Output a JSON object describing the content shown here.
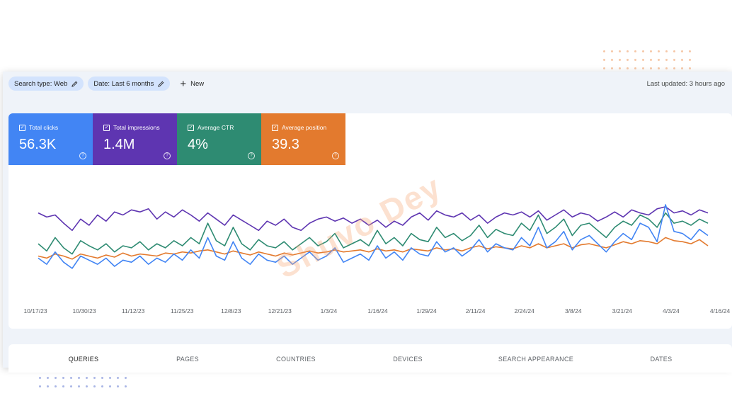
{
  "toolbar": {
    "search_type": "Search type: Web",
    "date": "Date: Last 6 months",
    "new_label": "New",
    "last_updated": "Last updated: 3 hours ago"
  },
  "metrics": [
    {
      "label": "Total clicks",
      "value": "56.3K",
      "color": "#4285f4"
    },
    {
      "label": "Total impressions",
      "value": "1.4M",
      "color": "#5e35b1"
    },
    {
      "label": "Average CTR",
      "value": "4%",
      "color": "#2e8b72"
    },
    {
      "label": "Average position",
      "value": "39.3",
      "color": "#e37a2e"
    }
  ],
  "watermark": "Shuvo Dey",
  "tabs": [
    "QUERIES",
    "PAGES",
    "COUNTRIES",
    "DEVICES",
    "SEARCH APPEARANCE",
    "DATES"
  ],
  "chart_data": {
    "type": "line",
    "x_ticks": [
      "10/17/23",
      "10/30/23",
      "11/12/23",
      "11/25/23",
      "12/8/23",
      "12/21/23",
      "1/3/24",
      "1/16/24",
      "1/29/24",
      "2/11/24",
      "2/24/24",
      "3/8/24",
      "3/21/24",
      "4/3/24",
      "4/16/24"
    ],
    "axis_hidden": true,
    "ylim": [
      0,
      100
    ],
    "series": [
      {
        "color": "#5e35b1",
        "values": [
          72,
          68,
          70,
          62,
          55,
          66,
          60,
          70,
          64,
          73,
          70,
          75,
          73,
          76,
          66,
          73,
          68,
          75,
          70,
          64,
          72,
          66,
          60,
          70,
          65,
          60,
          55,
          64,
          60,
          66,
          58,
          55,
          62,
          66,
          68,
          64,
          67,
          62,
          66,
          60,
          65,
          58,
          64,
          60,
          68,
          72,
          65,
          74,
          70,
          68,
          72,
          65,
          70,
          62,
          68,
          72,
          70,
          73,
          68,
          74,
          65,
          70,
          75,
          68,
          72,
          70,
          64,
          68,
          73,
          68,
          75,
          72,
          70,
          76,
          78,
          72,
          74,
          70,
          75,
          72
        ]
      },
      {
        "color": "#2e8b72",
        "values": [
          42,
          35,
          48,
          38,
          32,
          45,
          40,
          36,
          42,
          34,
          40,
          38,
          44,
          36,
          42,
          38,
          45,
          40,
          48,
          42,
          62,
          45,
          40,
          58,
          42,
          36,
          46,
          40,
          38,
          44,
          36,
          42,
          48,
          40,
          44,
          52,
          38,
          42,
          46,
          40,
          55,
          42,
          48,
          40,
          52,
          46,
          44,
          58,
          48,
          52,
          45,
          50,
          60,
          48,
          56,
          52,
          50,
          62,
          55,
          70,
          52,
          58,
          66,
          50,
          60,
          62,
          55,
          48,
          58,
          64,
          60,
          70,
          66,
          58,
          72,
          62,
          64,
          60,
          66,
          62
        ]
      },
      {
        "color": "#e37a2e",
        "values": [
          30,
          28,
          32,
          30,
          27,
          32,
          30,
          28,
          31,
          29,
          33,
          30,
          32,
          31,
          30,
          33,
          32,
          34,
          33,
          35,
          36,
          34,
          32,
          35,
          33,
          31,
          34,
          32,
          30,
          33,
          31,
          33,
          35,
          33,
          34,
          36,
          34,
          35,
          36,
          34,
          37,
          35,
          36,
          34,
          37,
          36,
          35,
          38,
          36,
          37,
          35,
          38,
          40,
          37,
          39,
          38,
          37,
          40,
          38,
          42,
          38,
          40,
          42,
          38,
          41,
          42,
          40,
          38,
          41,
          44,
          42,
          45,
          44,
          42,
          48,
          45,
          44,
          42,
          46,
          40
        ]
      },
      {
        "color": "#4285f4",
        "values": [
          28,
          22,
          34,
          24,
          18,
          30,
          26,
          22,
          28,
          20,
          26,
          24,
          30,
          22,
          28,
          24,
          32,
          26,
          36,
          28,
          48,
          30,
          26,
          44,
          28,
          22,
          32,
          26,
          24,
          30,
          22,
          28,
          34,
          26,
          30,
          38,
          24,
          28,
          32,
          26,
          40,
          28,
          34,
          26,
          38,
          32,
          30,
          44,
          34,
          38,
          30,
          36,
          46,
          34,
          42,
          38,
          36,
          48,
          40,
          58,
          38,
          44,
          54,
          36,
          46,
          50,
          42,
          34,
          44,
          52,
          46,
          62,
          58,
          44,
          80,
          54,
          52,
          46,
          56,
          50
        ]
      }
    ]
  }
}
